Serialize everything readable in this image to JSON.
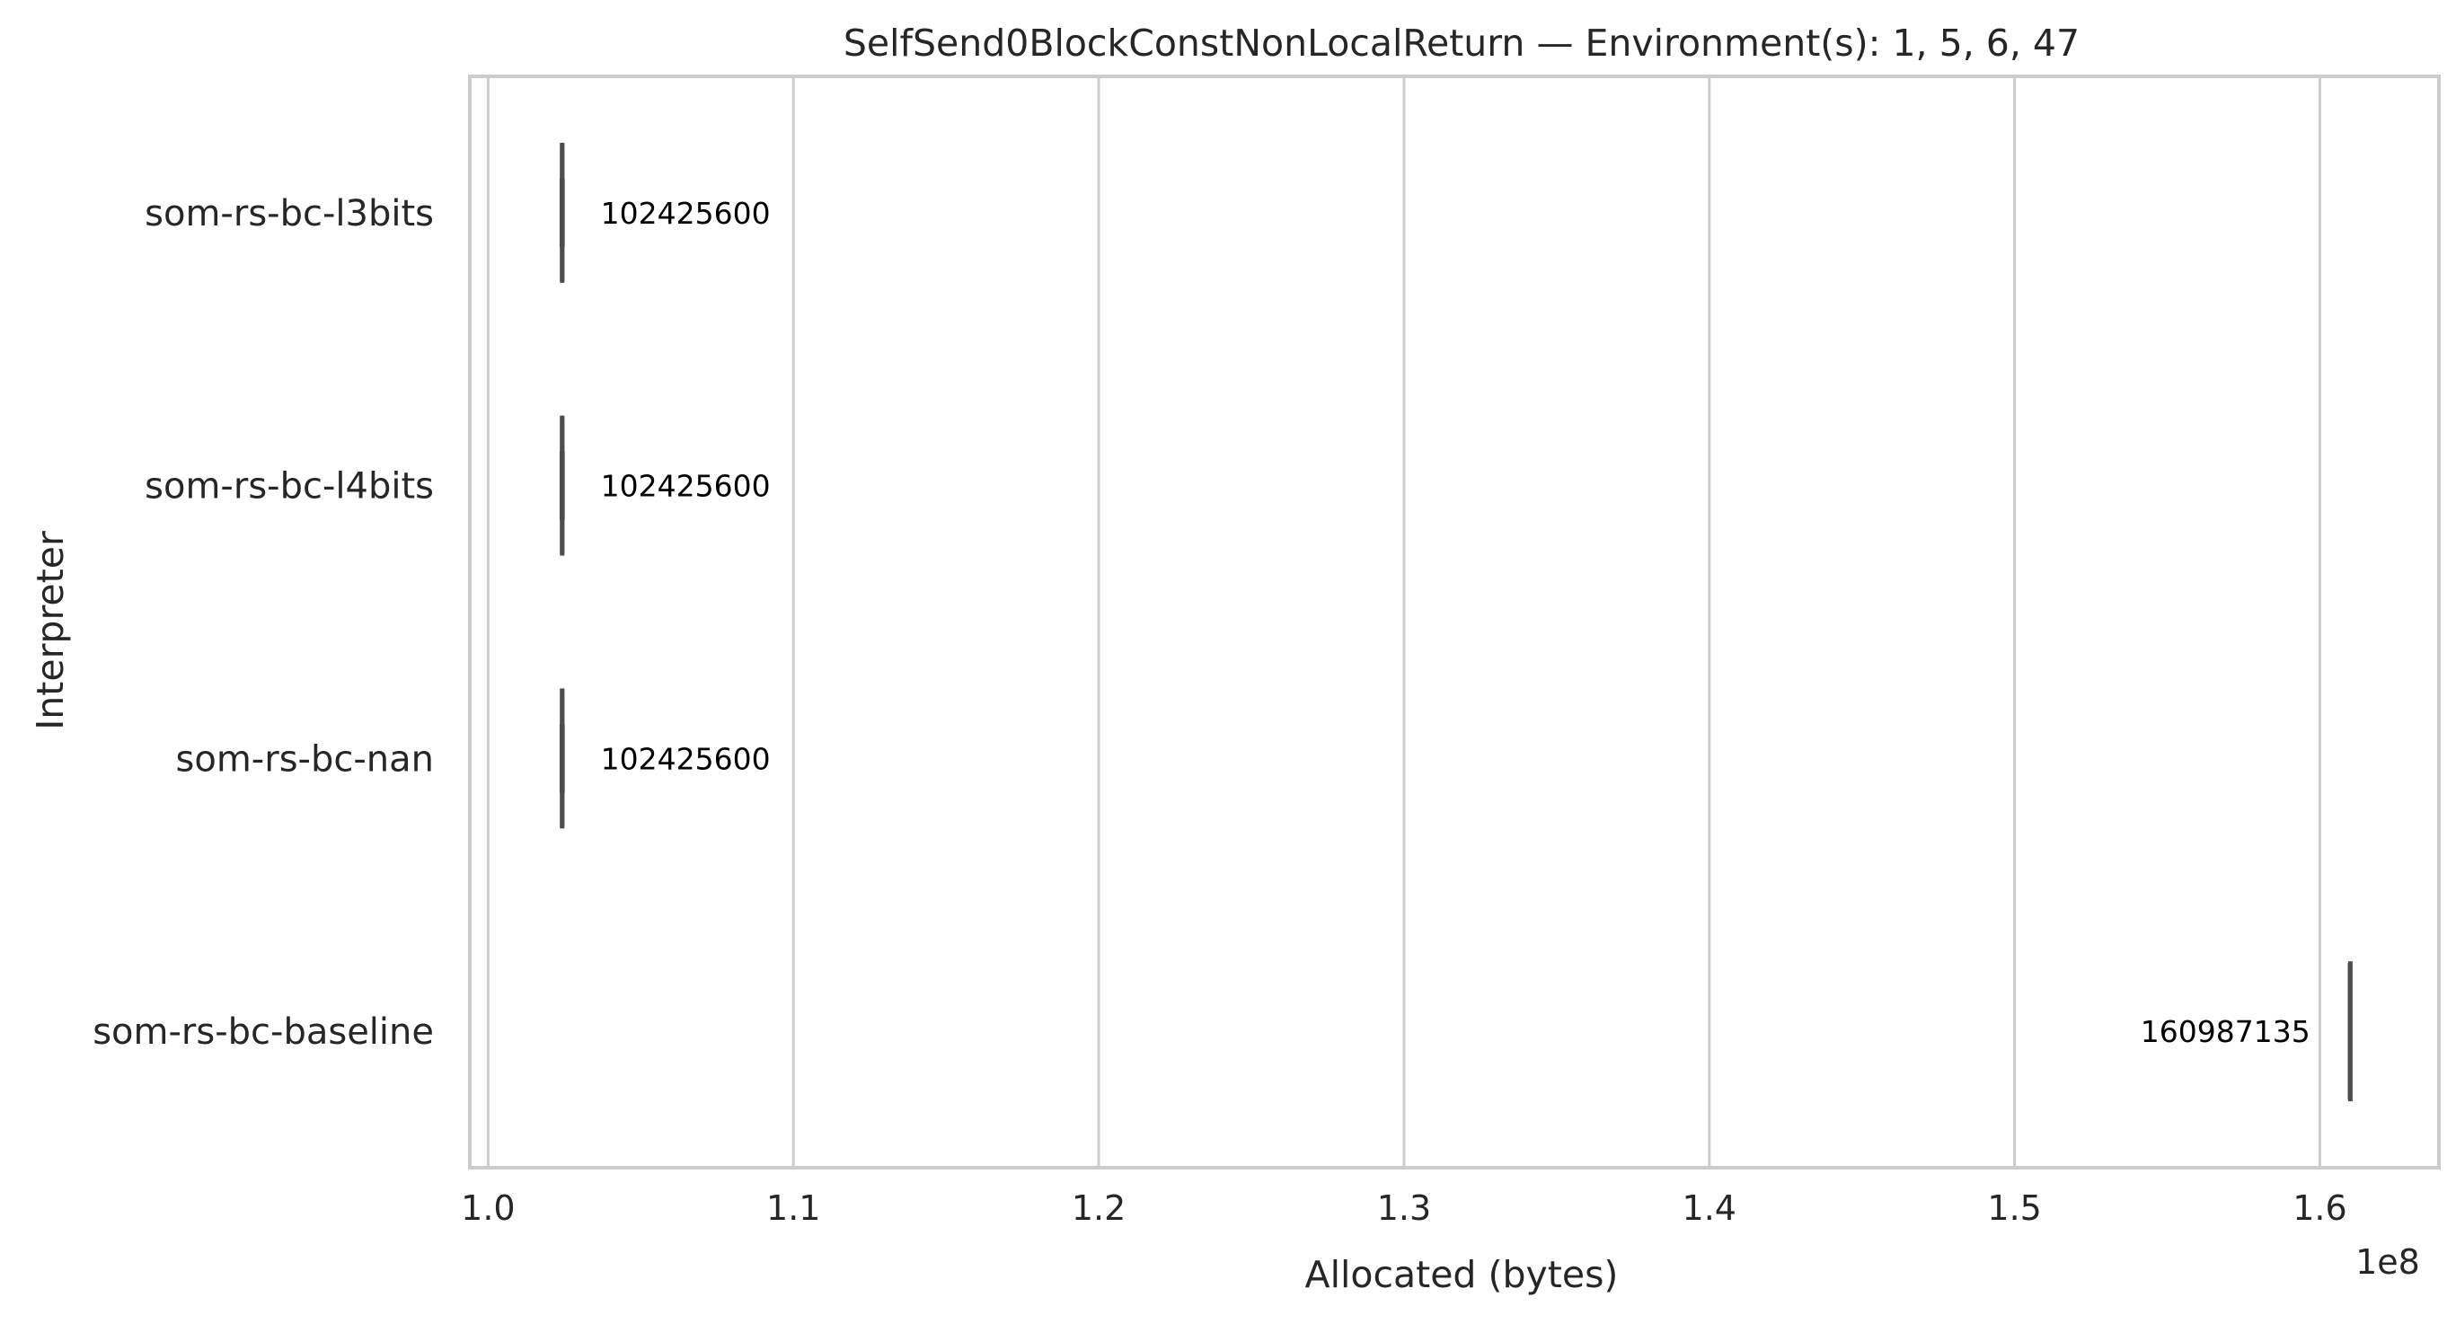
{
  "chart_data": {
    "type": "box",
    "orientation": "horizontal",
    "title": "SelfSend0BlockConstNonLocalReturn — Environment(s): 1, 5, 6, 47",
    "xlabel": "Allocated (bytes)",
    "ylabel": "Interpreter",
    "x_offset_label": "1e8",
    "xlim": [
      0.994,
      1.639
    ],
    "x_ticks": [
      1.0,
      1.1,
      1.2,
      1.3,
      1.4,
      1.5,
      1.6
    ],
    "x_tick_labels": [
      "1.0",
      "1.1",
      "1.2",
      "1.3",
      "1.4",
      "1.5",
      "1.6"
    ],
    "x_units_multiplier": 100000000,
    "grid": "vertical",
    "categories": [
      "som-rs-bc-l3bits",
      "som-rs-bc-l4bits",
      "som-rs-bc-nan",
      "som-rs-bc-baseline"
    ],
    "series": [
      {
        "category": "som-rs-bc-l3bits",
        "min": 102400000,
        "q1": 102410000,
        "median": 102425600,
        "q3": 102440000,
        "max": 102450000,
        "label": "102425600",
        "label_side": "right"
      },
      {
        "category": "som-rs-bc-l4bits",
        "min": 102400000,
        "q1": 102410000,
        "median": 102425600,
        "q3": 102440000,
        "max": 102450000,
        "label": "102425600",
        "label_side": "right"
      },
      {
        "category": "som-rs-bc-nan",
        "min": 102400000,
        "q1": 102410000,
        "median": 102425600,
        "q3": 102440000,
        "max": 102450000,
        "label": "102425600",
        "label_side": "right"
      },
      {
        "category": "som-rs-bc-baseline",
        "min": 160980000,
        "q1": 160984000,
        "median": 160987135,
        "q3": 160990000,
        "max": 160994000,
        "label": "160987135",
        "label_side": "left"
      }
    ],
    "colors": {
      "box_line": "#4d4d4d",
      "grid": "#cccccc",
      "axes_edge": "#cccccc",
      "text": "#262626"
    }
  }
}
